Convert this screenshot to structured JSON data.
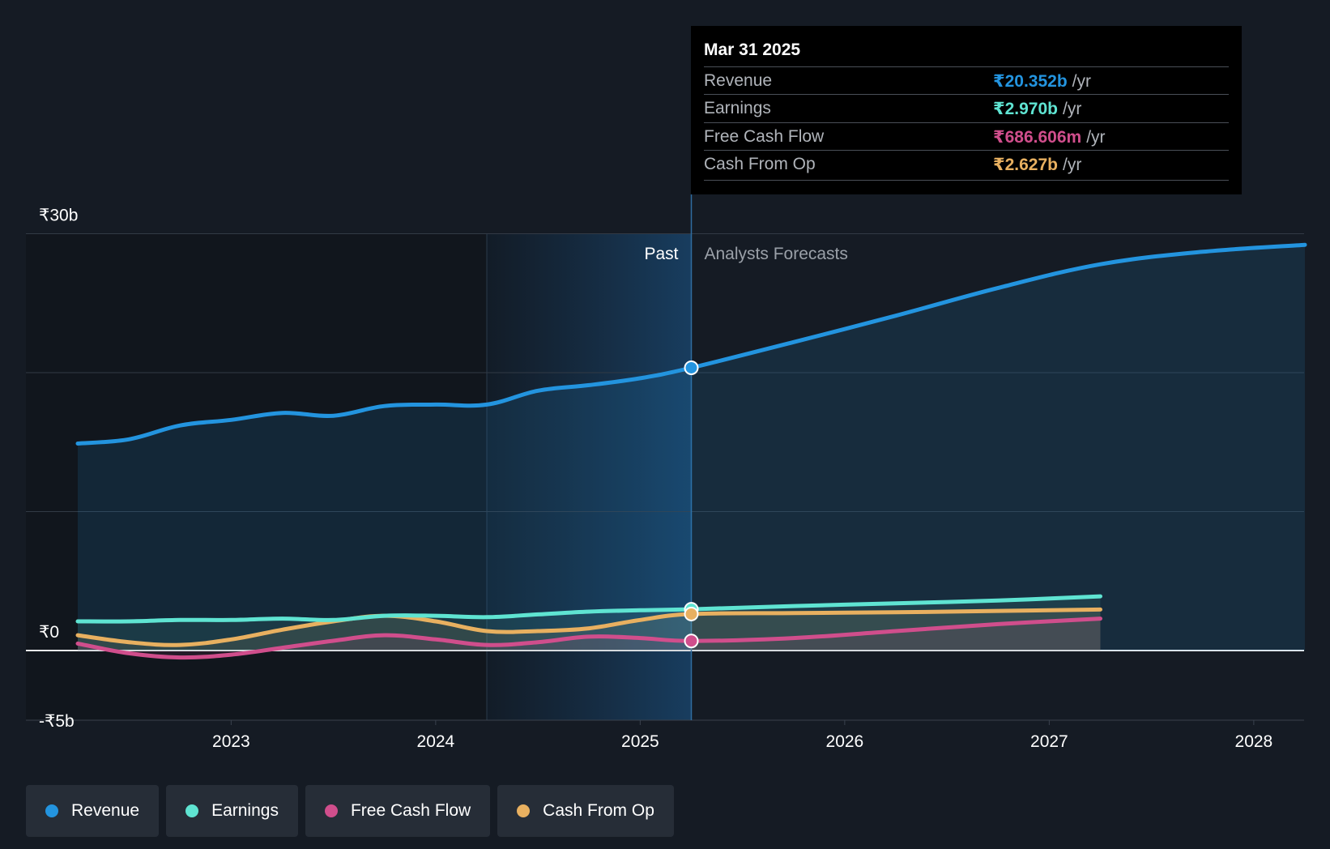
{
  "chart_data": {
    "type": "line",
    "currency": "₹",
    "y_unit": "b",
    "ylim": [
      -5,
      30
    ],
    "y_ticks": [
      {
        "value": 30,
        "label": "₹30b"
      },
      {
        "value": 0,
        "label": "₹0"
      },
      {
        "value": -5,
        "label": "-₹5b"
      }
    ],
    "gridlines": [
      30,
      20,
      10,
      0
    ],
    "xlim": [
      2022.25,
      2028.25
    ],
    "x_ticks": [
      {
        "value": 2023,
        "label": "2023"
      },
      {
        "value": 2024,
        "label": "2024"
      },
      {
        "value": 2025,
        "label": "2025"
      },
      {
        "value": 2026,
        "label": "2026"
      },
      {
        "value": 2027,
        "label": "2027"
      },
      {
        "value": 2028,
        "label": "2028"
      }
    ],
    "past_label": "Past",
    "forecast_label": "Analysts Forecasts",
    "highlight_range": [
      2024.25,
      2025.25
    ],
    "cursor_x": 2025.25,
    "series": [
      {
        "name": "Revenue",
        "color": "#2394df",
        "points": [
          [
            2022.25,
            14.9
          ],
          [
            2022.5,
            15.2
          ],
          [
            2022.75,
            16.2
          ],
          [
            2023.0,
            16.6
          ],
          [
            2023.25,
            17.1
          ],
          [
            2023.5,
            16.9
          ],
          [
            2023.75,
            17.6
          ],
          [
            2024.0,
            17.7
          ],
          [
            2024.25,
            17.7
          ],
          [
            2024.5,
            18.7
          ],
          [
            2024.75,
            19.1
          ],
          [
            2025.0,
            19.6
          ],
          [
            2025.25,
            20.352
          ],
          [
            2025.75,
            22.2
          ],
          [
            2026.25,
            24.1
          ],
          [
            2026.75,
            26.1
          ],
          [
            2027.25,
            27.8
          ],
          [
            2027.75,
            28.7
          ],
          [
            2028.25,
            29.2
          ]
        ]
      },
      {
        "name": "Earnings",
        "color": "#5fe4d2",
        "points": [
          [
            2022.25,
            2.1
          ],
          [
            2022.5,
            2.1
          ],
          [
            2022.75,
            2.2
          ],
          [
            2023.0,
            2.2
          ],
          [
            2023.25,
            2.3
          ],
          [
            2023.5,
            2.2
          ],
          [
            2023.75,
            2.5
          ],
          [
            2024.0,
            2.5
          ],
          [
            2024.25,
            2.4
          ],
          [
            2024.5,
            2.6
          ],
          [
            2024.75,
            2.8
          ],
          [
            2025.0,
            2.9
          ],
          [
            2025.25,
            2.97
          ],
          [
            2025.75,
            3.2
          ],
          [
            2026.25,
            3.4
          ],
          [
            2026.75,
            3.6
          ],
          [
            2027.25,
            3.9
          ]
        ]
      },
      {
        "name": "Free Cash Flow",
        "color": "#d04e8c",
        "points": [
          [
            2022.25,
            0.5
          ],
          [
            2022.5,
            -0.2
          ],
          [
            2022.75,
            -0.5
          ],
          [
            2023.0,
            -0.3
          ],
          [
            2023.25,
            0.2
          ],
          [
            2023.5,
            0.7
          ],
          [
            2023.75,
            1.1
          ],
          [
            2024.0,
            0.8
          ],
          [
            2024.25,
            0.4
          ],
          [
            2024.5,
            0.6
          ],
          [
            2024.75,
            1.0
          ],
          [
            2025.0,
            0.9
          ],
          [
            2025.25,
            0.687
          ],
          [
            2025.75,
            0.9
          ],
          [
            2026.25,
            1.4
          ],
          [
            2026.75,
            1.9
          ],
          [
            2027.25,
            2.3
          ]
        ]
      },
      {
        "name": "Cash From Op",
        "color": "#e8b060",
        "points": [
          [
            2022.25,
            1.1
          ],
          [
            2022.5,
            0.6
          ],
          [
            2022.75,
            0.4
          ],
          [
            2023.0,
            0.8
          ],
          [
            2023.25,
            1.5
          ],
          [
            2023.5,
            2.1
          ],
          [
            2023.75,
            2.5
          ],
          [
            2024.0,
            2.1
          ],
          [
            2024.25,
            1.4
          ],
          [
            2024.5,
            1.4
          ],
          [
            2024.75,
            1.6
          ],
          [
            2025.0,
            2.2
          ],
          [
            2025.25,
            2.627
          ],
          [
            2025.75,
            2.7
          ],
          [
            2026.25,
            2.75
          ],
          [
            2026.75,
            2.85
          ],
          [
            2027.25,
            2.95
          ]
        ]
      }
    ]
  },
  "tooltip": {
    "date": "Mar 31 2025",
    "rows": [
      {
        "label": "Revenue",
        "value": "₹20.352b",
        "unit": "/yr",
        "color": "#2394df"
      },
      {
        "label": "Earnings",
        "value": "₹2.970b",
        "unit": "/yr",
        "color": "#5fe4d2"
      },
      {
        "label": "Free Cash Flow",
        "value": "₹686.606m",
        "unit": "/yr",
        "color": "#d04e8c"
      },
      {
        "label": "Cash From Op",
        "value": "₹2.627b",
        "unit": "/yr",
        "color": "#e8b060"
      }
    ]
  },
  "legend": [
    {
      "label": "Revenue",
      "color": "#2394df"
    },
    {
      "label": "Earnings",
      "color": "#5fe4d2"
    },
    {
      "label": "Free Cash Flow",
      "color": "#d04e8c"
    },
    {
      "label": "Cash From Op",
      "color": "#e8b060"
    }
  ]
}
